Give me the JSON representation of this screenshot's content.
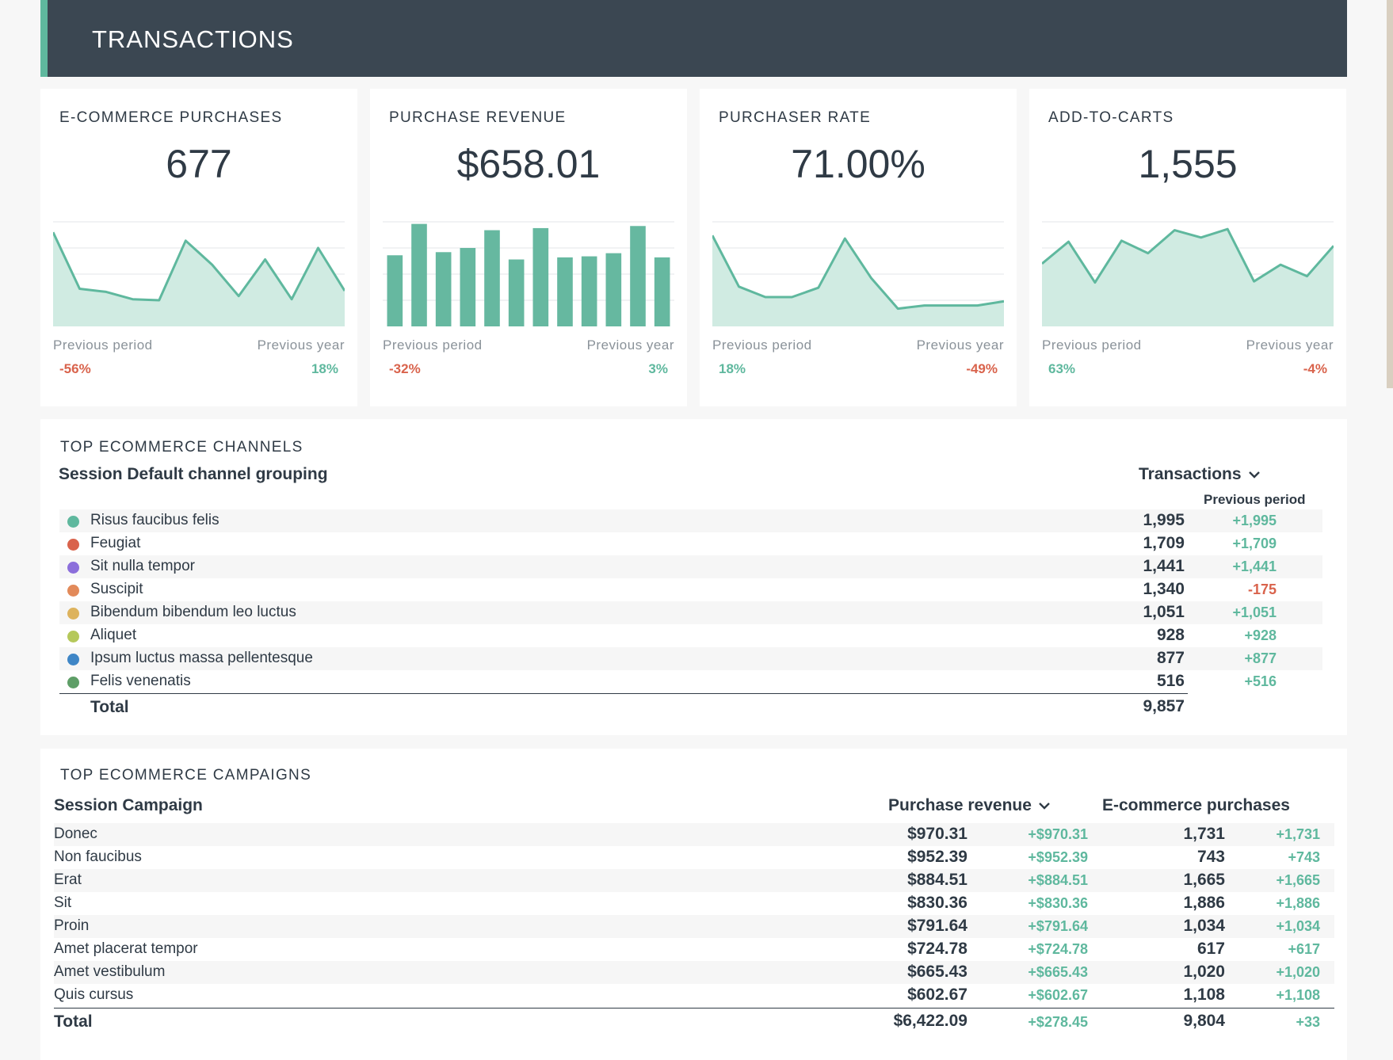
{
  "header": {
    "title": "TRANSACTIONS"
  },
  "labels": {
    "previous_period": "Previous period",
    "previous_year": "Previous year"
  },
  "kpis": [
    {
      "title": "E-COMMERCE PURCHASES",
      "value": "677",
      "change_prev": "-56%",
      "change_year": "18%",
      "prev_positive": false,
      "year_positive": true,
      "chart": {
        "type": "area",
        "values": [
          90,
          36,
          33,
          26,
          25,
          82,
          59,
          29,
          64,
          26,
          75,
          34
        ],
        "ylim": [
          0,
          100
        ]
      }
    },
    {
      "title": "PURCHASE REVENUE",
      "value": "$658.01",
      "change_prev": "-32%",
      "change_year": "3%",
      "prev_positive": false,
      "year_positive": true,
      "chart": {
        "type": "bar",
        "values": [
          68,
          98,
          71,
          75,
          92,
          64,
          94,
          66,
          67,
          70,
          96,
          66
        ],
        "ylim": [
          0,
          100
        ]
      }
    },
    {
      "title": "PURCHASER RATE",
      "value": "71.00%",
      "change_prev": "18%",
      "change_year": "-49%",
      "prev_positive": true,
      "year_positive": false,
      "chart": {
        "type": "area",
        "values": [
          87,
          38,
          28,
          28,
          37,
          84,
          46,
          17,
          20,
          20,
          20,
          24
        ],
        "ylim": [
          0,
          100
        ]
      }
    },
    {
      "title": "ADD-TO-CARTS",
      "value": "1,555",
      "change_prev": "63%",
      "change_year": "-4%",
      "prev_positive": true,
      "year_positive": false,
      "chart": {
        "type": "area",
        "values": [
          60,
          81,
          42,
          82,
          70,
          92,
          85,
          93,
          43,
          59,
          48,
          77
        ],
        "ylim": [
          0,
          100
        ]
      }
    }
  ],
  "channels": {
    "section_title": "TOP ECOMMERCE CHANNELS",
    "dimension_header": "Session Default channel grouping",
    "metric_header": "Transactions",
    "sub_header": "Previous period",
    "rows": [
      {
        "name": "Risus faucibus felis",
        "color": "#5fb89e",
        "value": "1,995",
        "change": "+1,995",
        "positive": true
      },
      {
        "name": "Feugiat",
        "color": "#d9634c",
        "value": "1,709",
        "change": "+1,709",
        "positive": true
      },
      {
        "name": "Sit nulla tempor",
        "color": "#8c6fdb",
        "value": "1,441",
        "change": "+1,441",
        "positive": true
      },
      {
        "name": "Suscipit",
        "color": "#e28a5a",
        "value": "1,340",
        "change": "-175",
        "positive": false
      },
      {
        "name": "Bibendum bibendum leo luctus",
        "color": "#ddb35d",
        "value": "1,051",
        "change": "+1,051",
        "positive": true
      },
      {
        "name": "Aliquet",
        "color": "#b5c85a",
        "value": "928",
        "change": "+928",
        "positive": true
      },
      {
        "name": "Ipsum luctus massa pellentesque",
        "color": "#3f86c6",
        "value": "877",
        "change": "+877",
        "positive": true
      },
      {
        "name": "Felis venenatis",
        "color": "#5e9e67",
        "value": "516",
        "change": "+516",
        "positive": true
      }
    ],
    "total_label": "Total",
    "total_value": "9,857"
  },
  "campaigns": {
    "section_title": "TOP ECOMMERCE CAMPAIGNS",
    "dimension_header": "Session Campaign",
    "revenue_header": "Purchase revenue",
    "purchases_header": "E-commerce purchases",
    "rows": [
      {
        "name": "Donec",
        "revenue": "$970.31",
        "revenue_change": "+$970.31",
        "purchases": "1,731",
        "purchases_change": "+1,731"
      },
      {
        "name": "Non faucibus",
        "revenue": "$952.39",
        "revenue_change": "+$952.39",
        "purchases": "743",
        "purchases_change": "+743"
      },
      {
        "name": "Erat",
        "revenue": "$884.51",
        "revenue_change": "+$884.51",
        "purchases": "1,665",
        "purchases_change": "+1,665"
      },
      {
        "name": "Sit",
        "revenue": "$830.36",
        "revenue_change": "+$830.36",
        "purchases": "1,886",
        "purchases_change": "+1,886"
      },
      {
        "name": "Proin",
        "revenue": "$791.64",
        "revenue_change": "+$791.64",
        "purchases": "1,034",
        "purchases_change": "+1,034"
      },
      {
        "name": "Amet placerat tempor",
        "revenue": "$724.78",
        "revenue_change": "+$724.78",
        "purchases": "617",
        "purchases_change": "+617"
      },
      {
        "name": "Amet vestibulum",
        "revenue": "$665.43",
        "revenue_change": "+$665.43",
        "purchases": "1,020",
        "purchases_change": "+1,020"
      },
      {
        "name": "Quis cursus",
        "revenue": "$602.67",
        "revenue_change": "+$602.67",
        "purchases": "1,108",
        "purchases_change": "+1,108"
      }
    ],
    "total_label": "Total",
    "total_revenue": "$6,422.09",
    "total_revenue_change": "+$278.45",
    "total_purchases": "9,804",
    "total_purchases_change": "+33"
  },
  "colors": {
    "accent": "#5fb89e",
    "negative": "#d9634c",
    "header_bg": "#3b4752"
  }
}
